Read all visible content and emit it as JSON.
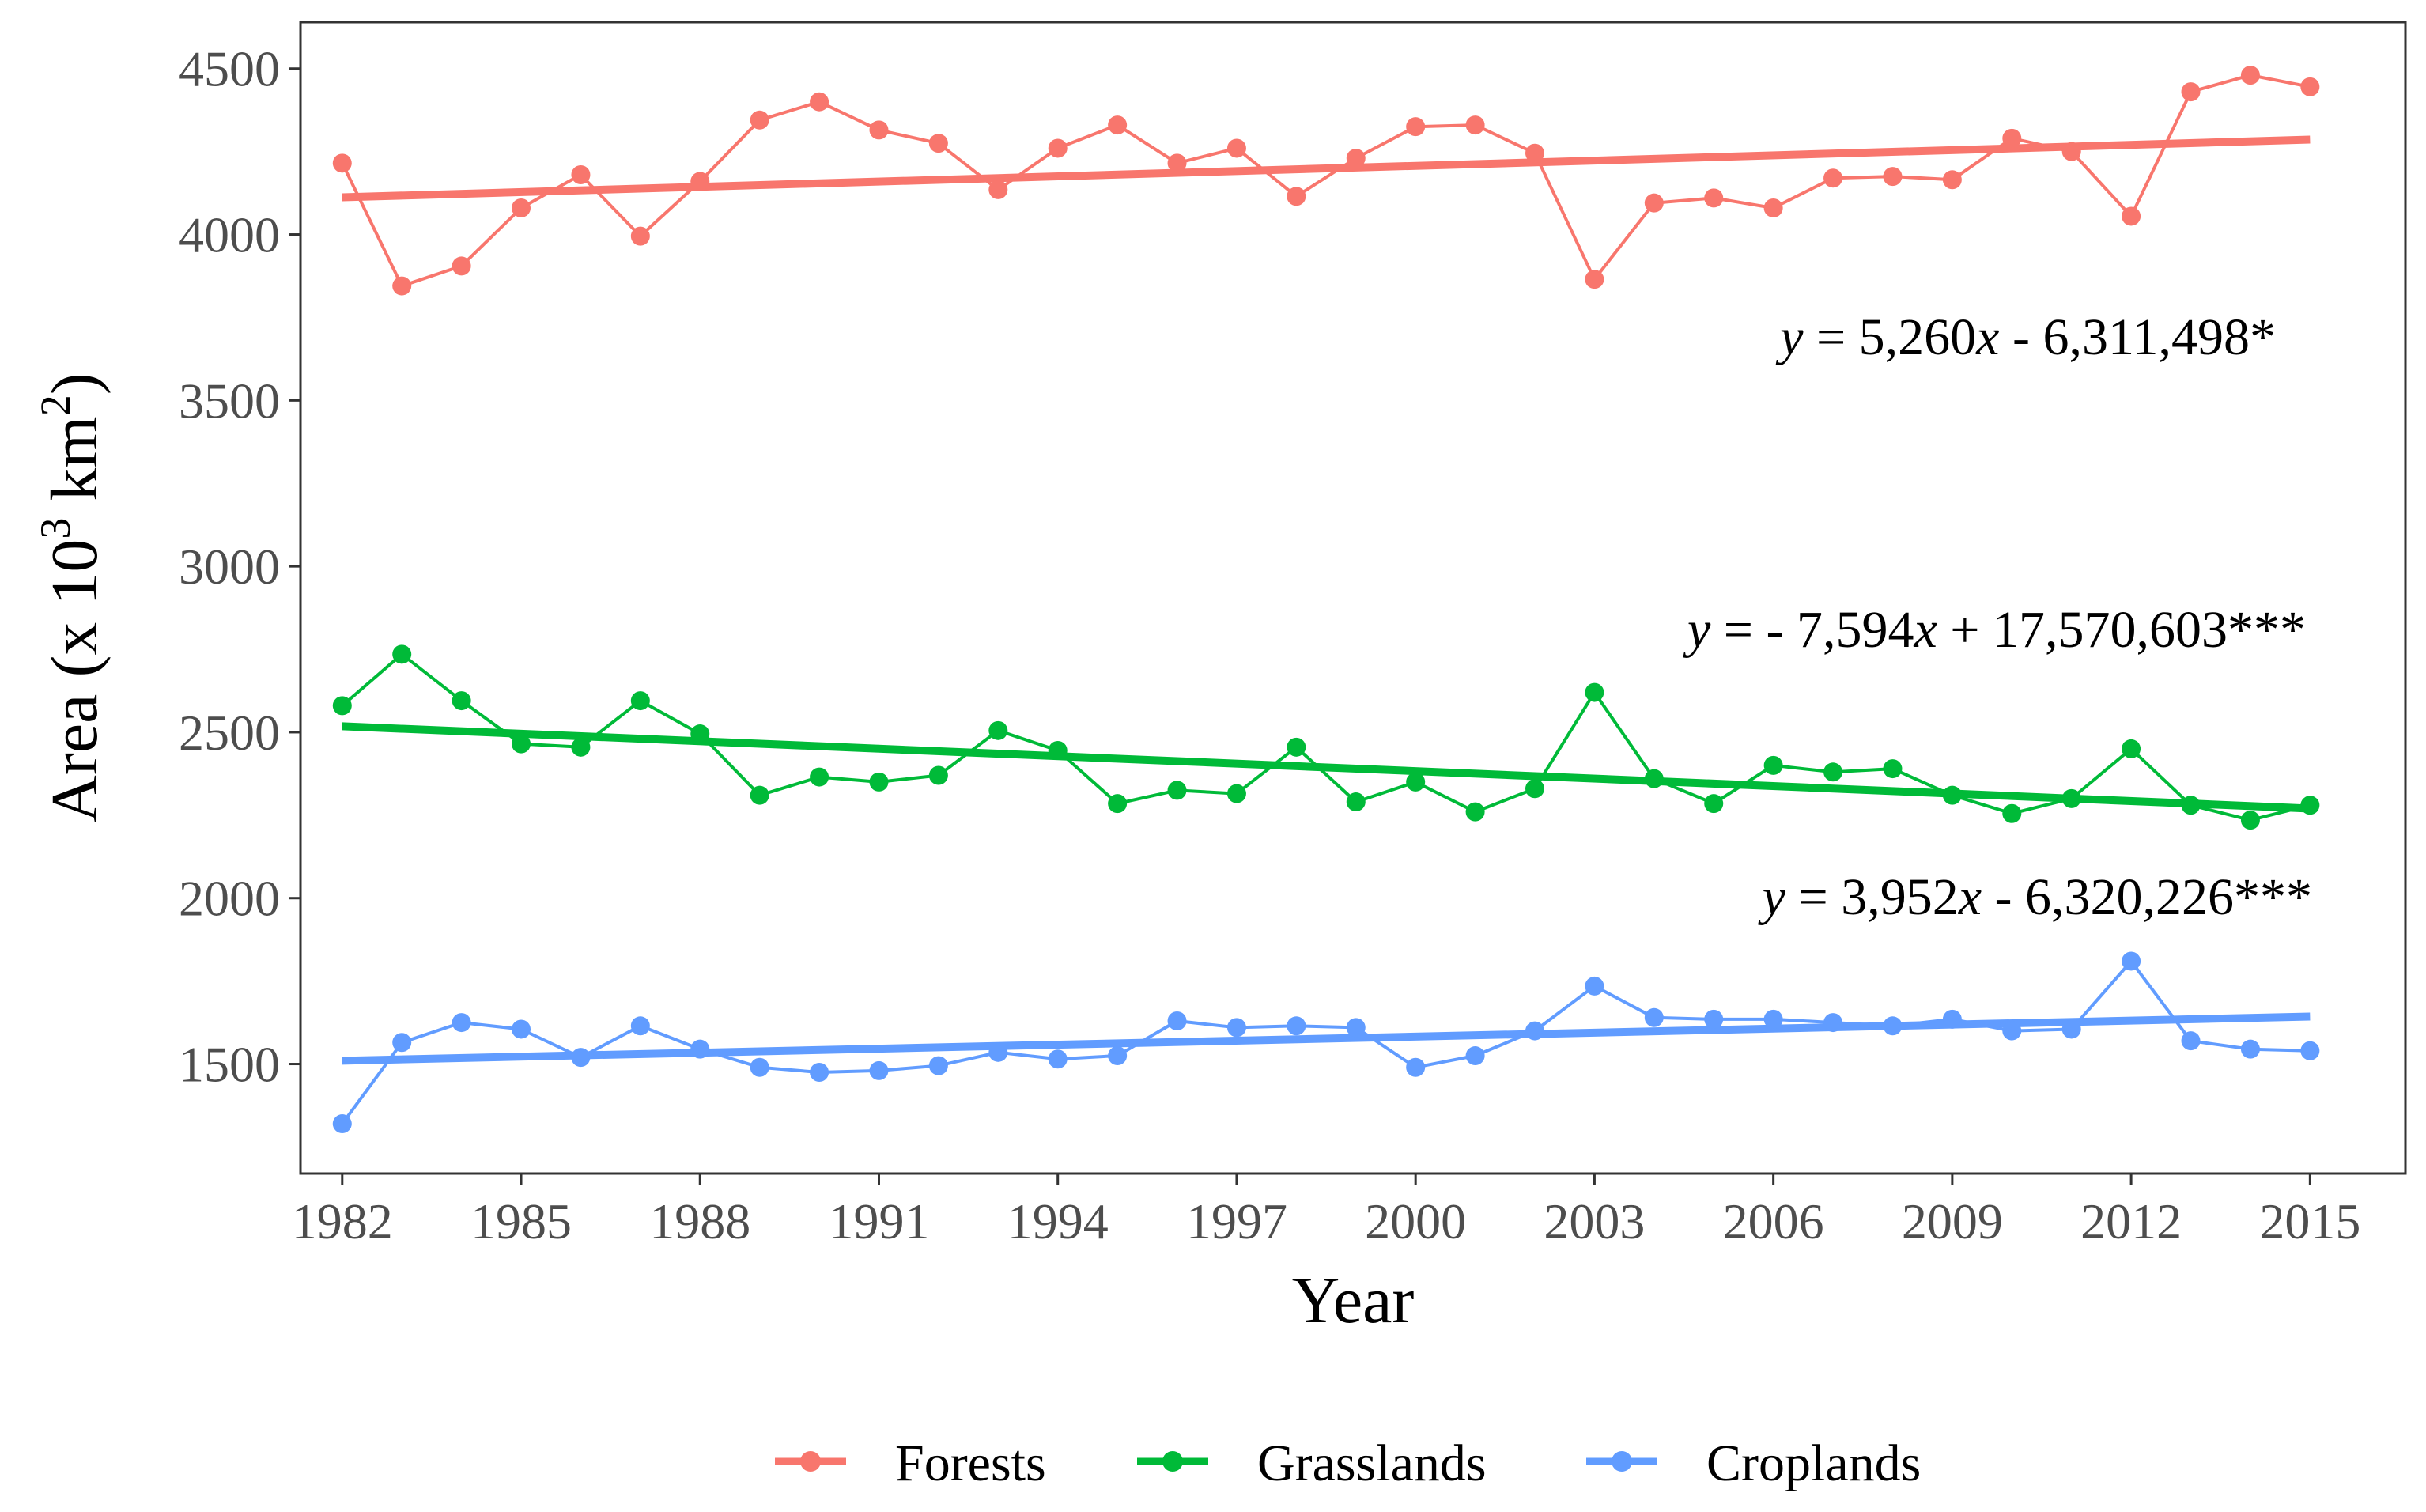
{
  "chart_data": {
    "type": "line",
    "xlabel": "Year",
    "ylabel": "Area (x 10^3 km^2)",
    "ylabel_parts": {
      "prefix": "Area (x 10",
      "exp1": "3",
      "middle": " km",
      "exp2": "2",
      "suffix": ")"
    },
    "xlim": [
      1981.3,
      2016.6
    ],
    "ylim": [
      1170,
      4640
    ],
    "xticks": [
      1982,
      1985,
      1988,
      1991,
      1994,
      1997,
      2000,
      2003,
      2006,
      2009,
      2012,
      2015
    ],
    "yticks": [
      1500,
      2000,
      2500,
      3000,
      3500,
      4000,
      4500
    ],
    "x": [
      1982,
      1983,
      1984,
      1985,
      1986,
      1987,
      1988,
      1989,
      1990,
      1991,
      1992,
      1993,
      1994,
      1995,
      1996,
      1997,
      1998,
      1999,
      2000,
      2001,
      2002,
      2003,
      2004,
      2005,
      2006,
      2007,
      2008,
      2009,
      2010,
      2011,
      2012,
      2013,
      2014,
      2015
    ],
    "series": [
      {
        "name": "Forests",
        "color": "#F8766D",
        "values": [
          4215,
          3845,
          3905,
          4080,
          4180,
          3995,
          4160,
          4345,
          4400,
          4315,
          4275,
          4135,
          4260,
          4330,
          4215,
          4260,
          4115,
          4230,
          4325,
          4330,
          4245,
          3865,
          4095,
          4110,
          4080,
          4170,
          4175,
          4165,
          4290,
          4250,
          4055,
          4430,
          4480,
          4445
        ],
        "trend": [
          4112,
          4286
        ],
        "equation": {
          "prefix": "y",
          "middle": " =  5,260",
          "var": "x",
          "suffix": " -  6,311,498*"
        }
      },
      {
        "name": "Grasslands",
        "color": "#00BA38",
        "values": [
          2580,
          2735,
          2595,
          2465,
          2455,
          2595,
          2495,
          2310,
          2365,
          2350,
          2370,
          2505,
          2445,
          2285,
          2325,
          2315,
          2455,
          2290,
          2350,
          2260,
          2330,
          2620,
          2360,
          2285,
          2400,
          2380,
          2390,
          2310,
          2255,
          2300,
          2450,
          2280,
          2235,
          2280
        ],
        "trend": [
          2518,
          2270
        ],
        "equation": {
          "prefix": "y",
          "middle": " =  -  7,594",
          "var": "x",
          "suffix": " +  17,570,603***"
        }
      },
      {
        "name": "Croplands",
        "color": "#619CFF",
        "values": [
          1320,
          1565,
          1625,
          1605,
          1520,
          1615,
          1545,
          1490,
          1475,
          1480,
          1495,
          1535,
          1515,
          1525,
          1630,
          1610,
          1615,
          1610,
          1490,
          1525,
          1600,
          1735,
          1640,
          1635,
          1635,
          1625,
          1615,
          1635,
          1600,
          1605,
          1810,
          1570,
          1545,
          1540
        ],
        "trend": [
          1510,
          1643
        ],
        "equation": {
          "prefix": "y",
          "middle": " =  3,952",
          "var": "x",
          "suffix": " -  6,320,226***"
        }
      }
    ],
    "legend_position": "bottom"
  }
}
